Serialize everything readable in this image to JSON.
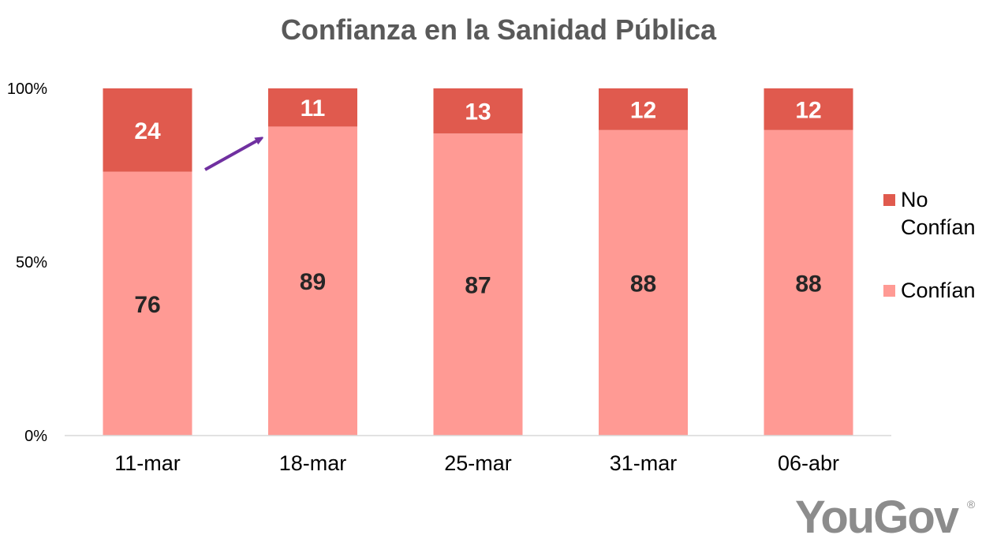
{
  "chart_data": {
    "type": "bar",
    "stacked": true,
    "title": "Confianza en la Sanidad Pública",
    "categories": [
      "11-mar",
      "18-mar",
      "25-mar",
      "31-mar",
      "06-abr"
    ],
    "series": [
      {
        "name": "Confían",
        "values": [
          76,
          89,
          87,
          88,
          88
        ],
        "color": "#ff9a94",
        "label_color": "#262626"
      },
      {
        "name": "No Confían",
        "values": [
          24,
          11,
          13,
          12,
          12
        ],
        "color": "#e05a4e",
        "label_color": "#ffffff"
      }
    ],
    "y_ticks": [
      "0%",
      "50%",
      "100%"
    ],
    "ylim": [
      0,
      100
    ],
    "xlabel": "",
    "ylabel": "",
    "grid": false,
    "legend_position": "right",
    "legend": {
      "no_confian_lines": [
        "No",
        "Confían"
      ],
      "confian": "Confían"
    },
    "annotation": {
      "type": "arrow",
      "color": "#7030a0",
      "description": "upward arrow between 11-mar and 18-mar"
    }
  },
  "brand": {
    "logo_text": "YouGov",
    "registered_mark": "®"
  }
}
